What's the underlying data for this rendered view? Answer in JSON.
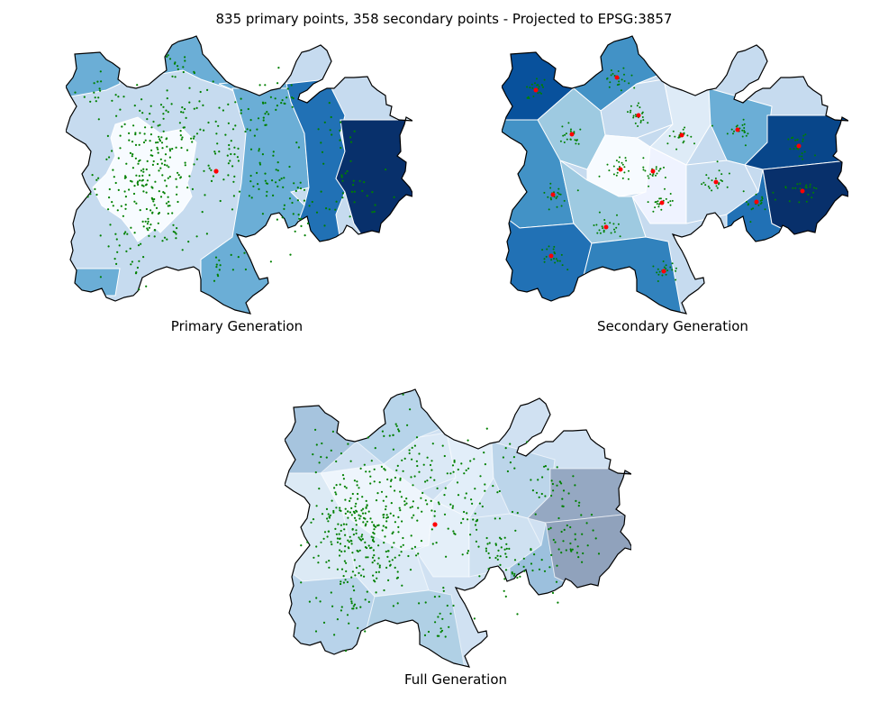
{
  "figure": {
    "title": "835 primary points, 358 secondary points - Projected to EPSG:3857"
  },
  "panels": [
    {
      "id": "primary",
      "caption": "Primary Generation"
    },
    {
      "id": "secondary",
      "caption": "Secondary Generation"
    },
    {
      "id": "full",
      "caption": "Full Generation"
    }
  ],
  "legend_colors": {
    "boundary": "#000000",
    "region_edge": "#ffffff",
    "points": "#008000",
    "centers": "#ff0000",
    "colormap": "Blues"
  },
  "point_counts": {
    "primary": 835,
    "secondary": 358
  }
}
